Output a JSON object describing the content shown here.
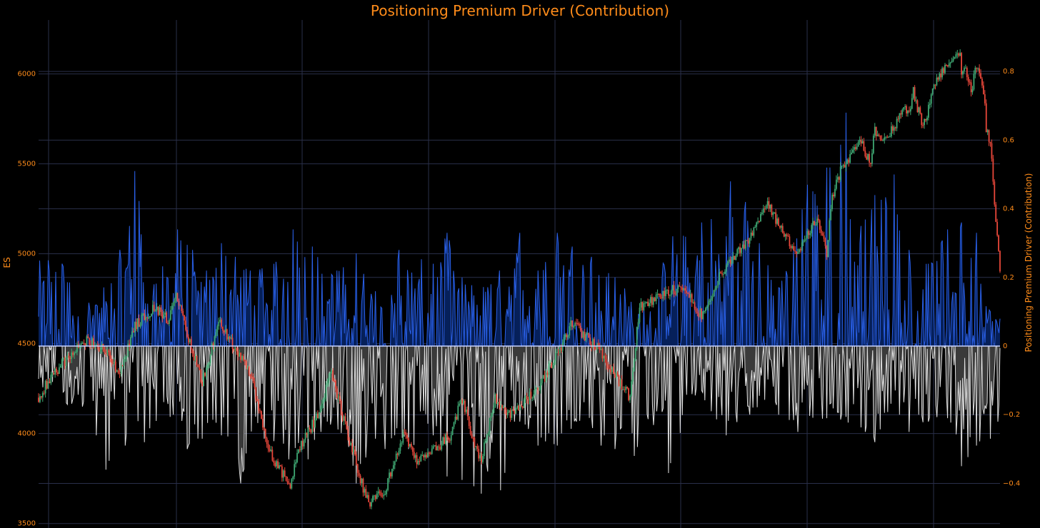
{
  "colors": {
    "background": "#000000",
    "title": "#ff8c1a",
    "tick": "#ff8c1a",
    "grid": "#2a2f4a",
    "zero_line": "#c8d2ff",
    "positive_line": "#2a60e8",
    "positive_fill": "#06205a",
    "negative_line": "#e0e0e0",
    "negative_fill": "#3a3a3a",
    "candle_up": "#3fa873",
    "candle_down": "#e8473a"
  },
  "chart_data": {
    "type": "line",
    "title": "Positioning Premium Driver (Contribution)",
    "xlabel": "",
    "ylabel_left": "ES",
    "ylabel_right": "Positioning Premium Driver (Contribution)",
    "left_axis": {
      "range": [
        3475,
        6300
      ],
      "ticks": [
        3500,
        4000,
        4500,
        5000,
        5500,
        6000
      ],
      "tick_labels": [
        "3500",
        "4000",
        "4500",
        "5000",
        "5500",
        "6000"
      ]
    },
    "right_axis": {
      "range": [
        -0.53,
        0.95
      ],
      "ticks": [
        -0.4,
        -0.2,
        0,
        0.2,
        0.4,
        0.6,
        0.8
      ],
      "tick_labels": [
        "−0.4",
        "−0.2",
        "0",
        "0.2",
        "0.4",
        "0.6",
        "0.8"
      ]
    },
    "grid": true,
    "legend": "none",
    "series": [
      {
        "type": "candlestick",
        "axis": "left",
        "x": [
          0,
          0.02,
          0.04,
          0.06,
          0.08,
          0.09,
          0.1,
          0.11,
          0.12,
          0.13,
          0.14,
          0.15,
          0.16,
          0.17,
          0.18,
          0.19,
          0.2,
          0.21,
          0.22,
          0.23,
          0.24,
          0.25,
          0.26,
          0.27,
          0.28,
          0.29,
          0.3,
          0.31,
          0.32,
          0.33,
          0.34,
          0.35,
          0.36,
          0.37,
          0.38,
          0.39,
          0.4,
          0.41,
          0.42,
          0.43,
          0.44,
          0.45,
          0.46,
          0.47,
          0.48,
          0.49,
          0.5,
          0.51,
          0.52,
          0.53,
          0.54,
          0.55,
          0.56,
          0.57,
          0.58,
          0.59,
          0.6,
          0.61,
          0.62,
          0.63,
          0.64,
          0.65,
          0.66,
          0.67,
          0.68,
          0.69,
          0.7,
          0.71,
          0.72,
          0.73,
          0.74,
          0.75,
          0.76,
          0.77,
          0.78,
          0.79,
          0.8,
          0.81,
          0.82,
          0.83,
          0.84,
          0.85,
          0.86,
          0.87,
          0.88,
          0.89,
          0.9,
          0.91,
          0.92,
          0.93,
          0.94,
          0.95,
          0.96,
          0.97,
          0.98,
          0.99,
          1.0
        ],
        "close": [
          4200,
          4330,
          4520,
          4480,
          4340,
          4600,
          4700,
          4630,
          4760,
          4550,
          4280,
          4620,
          4330,
          3900,
          3700,
          3900,
          4100,
          4350,
          4120,
          3650,
          3620,
          3680,
          4000,
          3840,
          3900,
          4000,
          4200,
          3920,
          3850,
          4200,
          4100,
          4180,
          4250,
          4500,
          4620,
          4450,
          4320,
          4200,
          4700,
          4800,
          4820,
          4650,
          4900,
          5050,
          5200,
          5300,
          5150,
          5000,
          5200,
          5300,
          5480,
          5550,
          5630,
          5000,
          5700,
          5500,
          5600,
          5800,
          5780,
          5900,
          5700,
          5990,
          6050,
          6100,
          6000,
          6050,
          5900,
          6120,
          6050,
          5850,
          5600,
          5700,
          4900
        ],
        "x_close": [
          0,
          0.014,
          0.05,
          0.065,
          0.085,
          0.1,
          0.12,
          0.135,
          0.143,
          0.155,
          0.17,
          0.188,
          0.22,
          0.24,
          0.262,
          0.27,
          0.29,
          0.305,
          0.315,
          0.34,
          0.345,
          0.36,
          0.38,
          0.395,
          0.41,
          0.43,
          0.44,
          0.455,
          0.46,
          0.475,
          0.49,
          0.505,
          0.52,
          0.545,
          0.555,
          0.585,
          0.6,
          0.615,
          0.625,
          0.66,
          0.67,
          0.69,
          0.71,
          0.735,
          0.75,
          0.758,
          0.77,
          0.79,
          0.81,
          0.825,
          0.835,
          0.845,
          0.855,
          0.82,
          0.87,
          0.865,
          0.877,
          0.9,
          0.905,
          0.91,
          0.92,
          0.935,
          0.945,
          0.955,
          0.96,
          0.962,
          0.97,
          0.958,
          0.975,
          0.985,
          0.99,
          0.985,
          1.0
        ]
      },
      {
        "type": "line_fill",
        "axis": "right",
        "name": "",
        "note_x": "normalized time 0..1",
        "positive_peaks": [
          [
            0.01,
            0.25
          ],
          [
            0.025,
            0.24
          ],
          [
            0.06,
            0.12
          ],
          [
            0.095,
            0.35
          ],
          [
            0.1,
            0.51
          ],
          [
            0.12,
            0.18
          ],
          [
            0.145,
            0.34
          ],
          [
            0.16,
            0.28
          ],
          [
            0.175,
            0.22
          ],
          [
            0.19,
            0.3
          ],
          [
            0.205,
            0.26
          ],
          [
            0.22,
            0.22
          ],
          [
            0.245,
            0.24
          ],
          [
            0.265,
            0.34
          ],
          [
            0.285,
            0.29
          ],
          [
            0.31,
            0.22
          ],
          [
            0.33,
            0.27
          ],
          [
            0.35,
            0.16
          ],
          [
            0.375,
            0.28
          ],
          [
            0.41,
            0.24
          ],
          [
            0.425,
            0.33
          ],
          [
            0.44,
            0.2
          ],
          [
            0.47,
            0.18
          ],
          [
            0.5,
            0.33
          ],
          [
            0.52,
            0.22
          ],
          [
            0.54,
            0.33
          ],
          [
            0.555,
            0.29
          ],
          [
            0.575,
            0.26
          ],
          [
            0.6,
            0.2
          ],
          [
            0.63,
            0.12
          ],
          [
            0.66,
            0.32
          ],
          [
            0.69,
            0.36
          ],
          [
            0.7,
            0.37
          ],
          [
            0.715,
            0.32
          ],
          [
            0.72,
            0.48
          ],
          [
            0.735,
            0.42
          ],
          [
            0.75,
            0.3
          ],
          [
            0.77,
            0.17
          ],
          [
            0.8,
            0.47
          ],
          [
            0.82,
            0.52
          ],
          [
            0.84,
            0.68
          ],
          [
            0.855,
            0.35
          ],
          [
            0.87,
            0.44
          ],
          [
            0.89,
            0.5
          ],
          [
            0.905,
            0.28
          ],
          [
            0.925,
            0.24
          ],
          [
            0.945,
            0.34
          ],
          [
            0.96,
            0.36
          ],
          [
            0.975,
            0.33
          ],
          [
            0.99,
            0.1
          ]
        ],
        "negative_troughs": [
          [
            0.005,
            -0.12
          ],
          [
            0.03,
            -0.17
          ],
          [
            0.06,
            -0.26
          ],
          [
            0.07,
            -0.36
          ],
          [
            0.09,
            -0.29
          ],
          [
            0.11,
            -0.28
          ],
          [
            0.14,
            -0.2
          ],
          [
            0.155,
            -0.3
          ],
          [
            0.17,
            -0.27
          ],
          [
            0.19,
            -0.26
          ],
          [
            0.21,
            -0.4
          ],
          [
            0.235,
            -0.27
          ],
          [
            0.26,
            -0.33
          ],
          [
            0.28,
            -0.33
          ],
          [
            0.3,
            -0.22
          ],
          [
            0.33,
            -0.4
          ],
          [
            0.35,
            -0.27
          ],
          [
            0.36,
            -0.3
          ],
          [
            0.37,
            -0.26
          ],
          [
            0.385,
            -0.3
          ],
          [
            0.41,
            -0.26
          ],
          [
            0.425,
            -0.38
          ],
          [
            0.44,
            -0.39
          ],
          [
            0.46,
            -0.43
          ],
          [
            0.48,
            -0.42
          ],
          [
            0.5,
            -0.22
          ],
          [
            0.52,
            -0.29
          ],
          [
            0.54,
            -0.29
          ],
          [
            0.56,
            -0.22
          ],
          [
            0.585,
            -0.29
          ],
          [
            0.6,
            -0.3
          ],
          [
            0.62,
            -0.32
          ],
          [
            0.64,
            -0.23
          ],
          [
            0.655,
            -0.37
          ],
          [
            0.68,
            -0.14
          ],
          [
            0.7,
            -0.19
          ],
          [
            0.715,
            -0.26
          ],
          [
            0.74,
            -0.2
          ],
          [
            0.77,
            -0.2
          ],
          [
            0.79,
            -0.25
          ],
          [
            0.82,
            -0.21
          ],
          [
            0.86,
            -0.25
          ],
          [
            0.87,
            -0.28
          ],
          [
            0.895,
            -0.2
          ],
          [
            0.905,
            -0.25
          ],
          [
            0.925,
            -0.22
          ],
          [
            0.945,
            -0.21
          ],
          [
            0.96,
            -0.35
          ],
          [
            0.975,
            -0.29
          ],
          [
            0.99,
            -0.27
          ]
        ]
      }
    ]
  }
}
